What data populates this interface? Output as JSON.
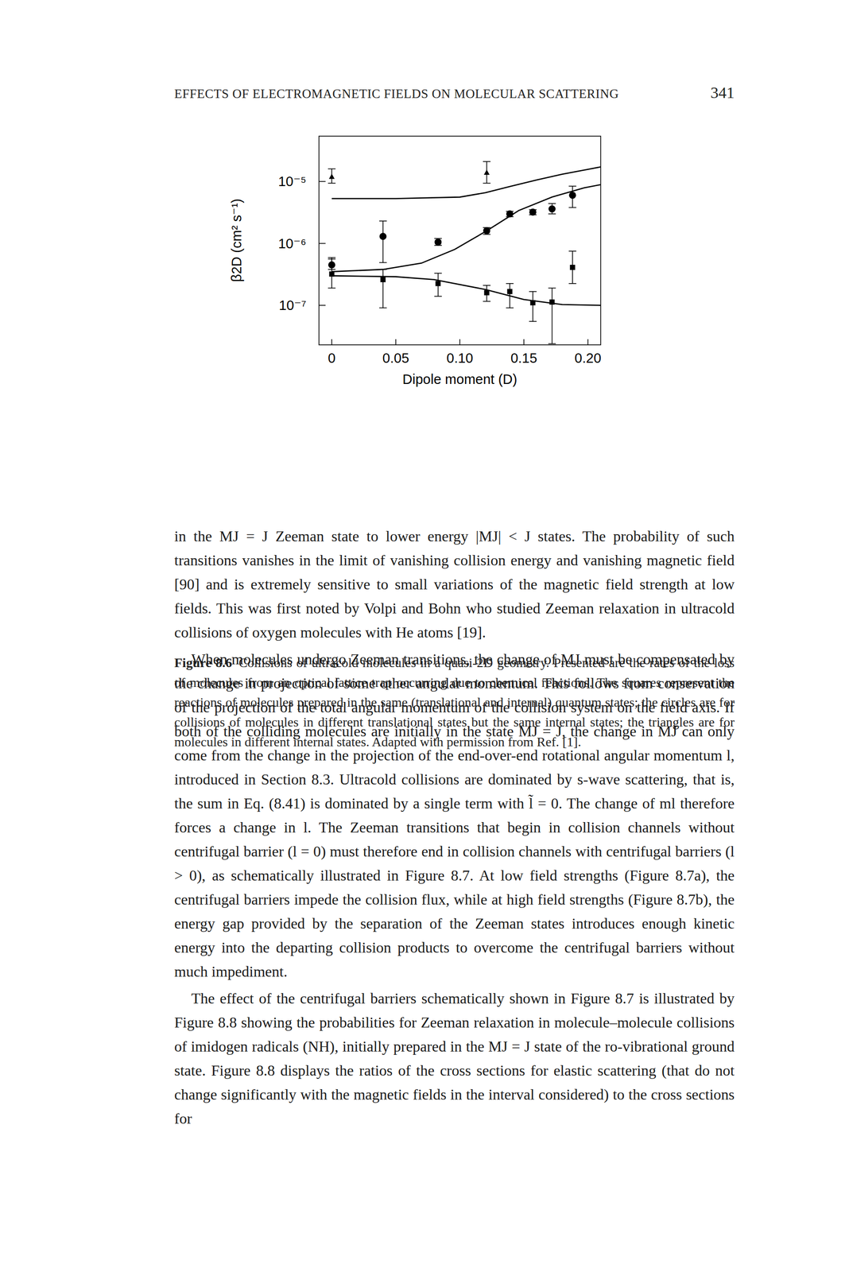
{
  "header": {
    "title": "EFFECTS OF ELECTROMAGNETIC FIELDS ON MOLECULAR SCATTERING",
    "page": "341"
  },
  "chart_data": {
    "type": "scatter",
    "xlabel": "Dipole moment (D)",
    "ylabel": "β2D (cm² s⁻¹)",
    "color": "#000000",
    "log": "y",
    "xlim": [
      -0.01,
      0.21
    ],
    "ylim": [
      2.3e-08,
      5.4e-05
    ],
    "xticks": [
      0,
      0.05,
      {
        "value": 0.1,
        "label": "0.10"
      },
      0.15,
      {
        "value": 0.2,
        "label": "0.20"
      }
    ],
    "yticks": [
      {
        "value": 1e-07,
        "label": "10⁻⁷"
      },
      {
        "value": 1e-06,
        "label": "10⁻⁶"
      },
      {
        "value": 1e-05,
        "label": "10⁻⁵"
      }
    ],
    "series": [
      {
        "marker": "square",
        "x": [
          0,
          0.04,
          0.083,
          0.121,
          0.139,
          0.157,
          0.172,
          0.188
        ],
        "values": [
          3.2e-07,
          2.6e-07,
          2.25e-07,
          1.6e-07,
          1.67e-07,
          1.1e-07,
          1.13e-07,
          4.1e-07
        ],
        "lower": [
          1.9e-07,
          9.1e-08,
          1.4e-07,
          1.16e-07,
          9.1e-08,
          5.5e-08,
          2.4e-08,
          2.25e-07
        ],
        "upper": [
          5.9e-07,
          3.8e-07,
          3.3e-07,
          2.1e-07,
          2.25e-07,
          1.67e-07,
          1.9e-07,
          7.5e-07
        ]
      },
      {
        "marker": "circle",
        "x": [
          0,
          0.04,
          0.083,
          0.121,
          0.139,
          0.157,
          0.172,
          0.188
        ],
        "values": [
          4.5e-07,
          1.3e-06,
          1.05e-06,
          1.6e-06,
          3e-06,
          3.2e-06,
          3.6e-06,
          6e-06
        ],
        "lower": [
          3.8e-07,
          4.9e-07,
          9.3e-07,
          1.4e-06,
          2.7e-06,
          2.9e-06,
          3e-06,
          3.8e-06
        ],
        "upper": [
          5.6e-07,
          2.3e-06,
          1.2e-06,
          1.8e-06,
          3.3e-06,
          3.5e-06,
          4.4e-06,
          8.4e-06
        ]
      },
      {
        "marker": "triangle",
        "x": [
          0,
          0.121
        ],
        "values": [
          1.2e-05,
          1.4e-05
        ],
        "lower": [
          9.4e-06,
          9.4e-06
        ],
        "upper": [
          1.6e-05,
          2.1e-05
        ]
      },
      {
        "type": "line",
        "line_style": "solid",
        "x": [
          0,
          0.05,
          0.1,
          0.12,
          0.14,
          0.16,
          0.18,
          0.2,
          0.21
        ],
        "values": [
          5.3e-06,
          5.3e-06,
          5.6e-06,
          6.6e-06,
          8.4e-06,
          1.06e-05,
          1.31e-05,
          1.57e-05,
          1.72e-05
        ]
      },
      {
        "type": "line",
        "line_style": "solid",
        "x": [
          0,
          0.04,
          0.07,
          0.096,
          0.121,
          0.146,
          0.172,
          0.197,
          0.21
        ],
        "values": [
          3.5e-07,
          3.8e-07,
          4.8e-07,
          8e-07,
          1.6e-06,
          3.4e-06,
          5.6e-06,
          7.9e-06,
          8.9e-06
        ]
      },
      {
        "type": "line",
        "line_style": "solid",
        "x": [
          0,
          0.05,
          0.08,
          0.12,
          0.15,
          0.18,
          0.21
        ],
        "values": [
          3e-07,
          2.9e-07,
          2.6e-07,
          1.8e-07,
          1.24e-07,
          1.03e-07,
          1e-07
        ]
      }
    ]
  },
  "caption": {
    "label": "Figure 8.6",
    "text": "Collisions of ultracold molecules in a quasi-2D geometry. Presented are the rates of the loss of molecules from an optical lattice trap occurring due to chemical reactions. The squares represent the reactions of molecules prepared in the same (translational and internal) quantum states; the circles are for collisions of molecules in different translational states but the same internal states; the triangles are for molecules in different internal states. Adapted with permission from Ref. [1]."
  },
  "body": [
    "in the MJ = J Zeeman state to lower energy |MJ| < J states. The probability of such transitions vanishes in the limit of vanishing collision energy and vanishing magnetic field [90] and is extremely sensitive to small variations of the magnetic field strength at low fields. This was first noted by Volpi and Bohn who studied Zeeman relaxation in ultracold collisions of oxygen molecules with He atoms [19].",
    "When molecules undergo Zeeman transitions, the change of MJ must be compensated by the change in projection of some other angular momentum. This follows from conservation of the projection of the total angular momentum of the collision system on the field axis. If both of the colliding molecules are initially in the state MJ = J, the change in MJ can only come from the change in the projection of the end-over-end rotational angular momentum l, introduced in Section 8.3. Ultracold collisions are dominated by s-wave scattering, that is, the sum in Eq. (8.41) is dominated by a single term with l̃ = 0. The change of ml therefore forces a change in l. The Zeeman transitions that begin in collision channels without centrifugal barrier (l = 0) must therefore end in collision channels with centrifugal barriers (l > 0), as schematically illustrated in Figure 8.7. At low field strengths (Figure 8.7a), the centrifugal barriers impede the collision flux, while at high field strengths (Figure 8.7b), the energy gap provided by the separation of the Zeeman states introduces enough kinetic energy into the departing collision products to overcome the centrifugal barriers without much impediment.",
    "The effect of the centrifugal barriers schematically shown in Figure 8.7 is illustrated by Figure 8.8 showing the probabilities for Zeeman relaxation in molecule–molecule collisions of imidogen radicals (NH), initially prepared in the MJ = J state of the ro-vibrational ground state. Figure 8.8 displays the ratios of the cross sections for elastic scattering (that do not change significantly with the magnetic fields in the interval considered) to the cross sections for"
  ]
}
